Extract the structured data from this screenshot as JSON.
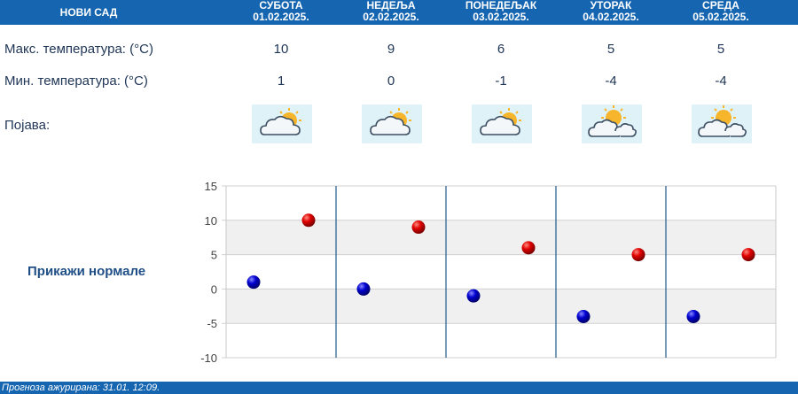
{
  "header": {
    "city": "НОВИ САД",
    "days": [
      {
        "name": "СУБОТА",
        "date": "01.02.2025."
      },
      {
        "name": "НЕДЕЉА",
        "date": "02.02.2025."
      },
      {
        "name": "ПОНЕДЕЉАК",
        "date": "03.02.2025."
      },
      {
        "name": "УТОРАК",
        "date": "04.02.2025."
      },
      {
        "name": "СРЕДА",
        "date": "05.02.2025."
      }
    ]
  },
  "rows": {
    "max_label": "Макс. температура: (°C)",
    "min_label": "Мин. температура: (°C)",
    "phenomenon_label": "Појава:",
    "max_values": [
      "10",
      "9",
      "6",
      "5",
      "5"
    ],
    "min_values": [
      "1",
      "0",
      "-1",
      "-4",
      "-4"
    ],
    "icons": [
      "cloud-sun-icon",
      "cloud-sun-icon",
      "cloud-sun-icon",
      "sun-cloud-icon",
      "sun-cloud-icon"
    ]
  },
  "normals_link": "Прикажи нормале",
  "footer": {
    "text": "Прогноза ажурирана:  31.01. 12:09."
  },
  "colors": {
    "header_bg": "#1565b0",
    "max_marker": "#d10000",
    "min_marker": "#0000c0",
    "grid_band": "#f0f0f0",
    "day_separator": "#1f5b8a"
  },
  "chart_data": {
    "type": "scatter",
    "categories": [
      "СУБОТА",
      "НЕДЕЉА",
      "ПОНЕДЕЉАК",
      "УТОРАК",
      "СРЕДА"
    ],
    "series": [
      {
        "values": [
          10,
          9,
          6,
          5,
          5
        ]
      },
      {
        "values": [
          1,
          0,
          -1,
          -4,
          -4
        ]
      }
    ],
    "y_ticks": [
      "15",
      "10",
      "5",
      "0",
      "-5",
      "-10"
    ],
    "ylim": [
      -10,
      15
    ],
    "grid": true,
    "legend": "none"
  }
}
